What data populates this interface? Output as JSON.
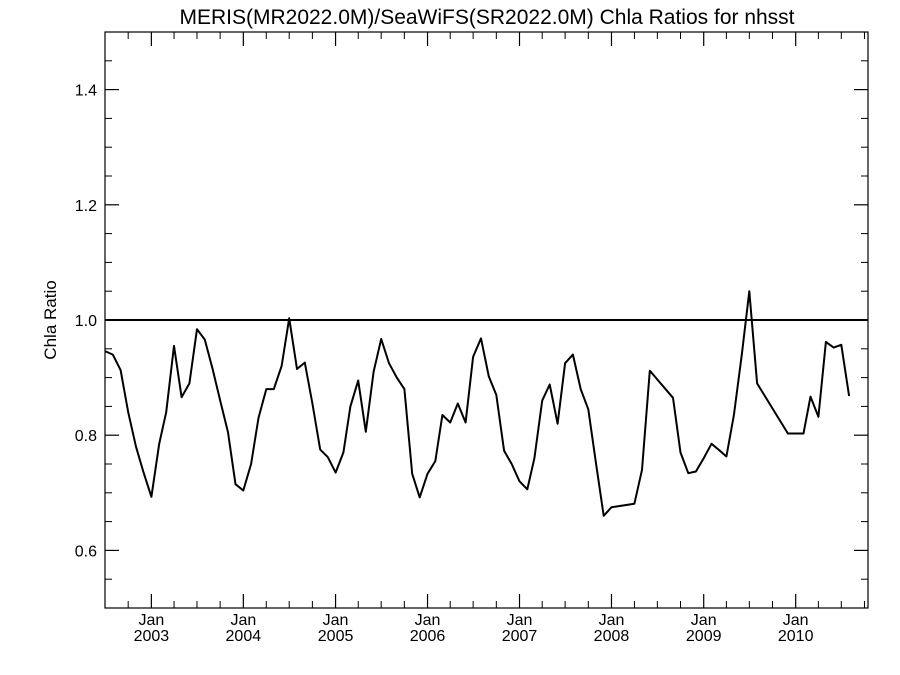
{
  "chart_data": {
    "type": "line",
    "title": "MERIS(MR2022.0M)/SeaWiFS(SR2022.0M)  Chla Ratios for nhsst",
    "xlabel": "",
    "ylabel": "Chla Ratio",
    "xlim": [
      "2002-07-01",
      "2010-10-15"
    ],
    "ylim": [
      0.5,
      1.5
    ],
    "y_ticks": [
      0.6,
      0.8,
      1.0,
      1.2,
      1.4
    ],
    "y_tick_labels": [
      "0.6",
      "0.8",
      "1.0",
      "1.2",
      "1.4"
    ],
    "x_ticks": [
      {
        "date": "2003-01-01",
        "month": "Jan",
        "year": "2003"
      },
      {
        "date": "2004-01-01",
        "month": "Jan",
        "year": "2004"
      },
      {
        "date": "2005-01-01",
        "month": "Jan",
        "year": "2005"
      },
      {
        "date": "2006-01-01",
        "month": "Jan",
        "year": "2006"
      },
      {
        "date": "2007-01-01",
        "month": "Jan",
        "year": "2007"
      },
      {
        "date": "2008-01-01",
        "month": "Jan",
        "year": "2008"
      },
      {
        "date": "2009-01-01",
        "month": "Jan",
        "year": "2009"
      },
      {
        "date": "2010-01-01",
        "month": "Jan",
        "year": "2010"
      }
    ],
    "reference_line": 1.0,
    "grid": false,
    "series": [
      {
        "x": [
          "2002-07-01",
          "2002-08-01",
          "2002-09-01",
          "2002-10-01",
          "2002-11-01",
          "2002-12-01",
          "2003-01-01",
          "2003-02-01",
          "2003-03-01",
          "2003-04-01",
          "2003-05-01",
          "2003-06-01",
          "2003-07-01",
          "2003-08-01",
          "2003-09-01",
          "2003-10-01",
          "2003-11-01",
          "2003-12-01",
          "2004-01-01",
          "2004-02-01",
          "2004-03-01",
          "2004-04-01",
          "2004-05-01",
          "2004-06-01",
          "2004-07-01",
          "2004-08-01",
          "2004-09-01",
          "2004-10-01",
          "2004-11-01",
          "2004-12-01",
          "2005-01-01",
          "2005-02-01",
          "2005-03-01",
          "2005-04-01",
          "2005-05-01",
          "2005-06-01",
          "2005-07-01",
          "2005-08-01",
          "2005-09-01",
          "2005-10-01",
          "2005-11-01",
          "2005-12-01",
          "2006-01-01",
          "2006-02-01",
          "2006-03-01",
          "2006-04-01",
          "2006-05-01",
          "2006-06-01",
          "2006-07-01",
          "2006-08-01",
          "2006-09-01",
          "2006-10-01",
          "2006-11-01",
          "2006-12-01",
          "2007-01-01",
          "2007-02-01",
          "2007-03-01",
          "2007-04-01",
          "2007-05-01",
          "2007-06-01",
          "2007-07-01",
          "2007-08-01",
          "2007-09-01",
          "2007-10-01",
          "2007-11-01",
          "2007-12-01",
          "2008-01-01",
          "2008-04-01",
          "2008-05-01",
          "2008-06-01",
          "2008-09-01",
          "2008-10-01",
          "2008-11-01",
          "2008-12-01",
          "2009-01-01",
          "2009-02-01",
          "2009-03-01",
          "2009-04-01",
          "2009-05-01",
          "2009-06-01",
          "2009-07-01",
          "2009-08-01",
          "2009-12-01",
          "2010-01-01",
          "2010-02-01",
          "2010-03-01",
          "2010-04-01",
          "2010-05-01",
          "2010-06-01",
          "2010-07-01",
          "2010-08-01"
        ],
        "values": [
          0.946,
          0.94,
          0.913,
          0.84,
          0.78,
          0.735,
          0.693,
          0.785,
          0.84,
          0.955,
          0.866,
          0.89,
          0.984,
          0.966,
          0.915,
          0.86,
          0.805,
          0.715,
          0.704,
          0.75,
          0.83,
          0.88,
          0.88,
          0.92,
          1.003,
          0.915,
          0.926,
          0.855,
          0.775,
          0.762,
          0.735,
          0.77,
          0.85,
          0.895,
          0.806,
          0.91,
          0.967,
          0.925,
          0.9,
          0.88,
          0.733,
          0.692,
          0.733,
          0.755,
          0.835,
          0.822,
          0.855,
          0.822,
          0.936,
          0.968,
          0.902,
          0.87,
          0.773,
          0.75,
          0.72,
          0.706,
          0.76,
          0.86,
          0.888,
          0.82,
          0.925,
          0.94,
          0.88,
          0.845,
          0.75,
          0.66,
          0.675,
          0.681,
          0.74,
          0.912,
          0.865,
          0.77,
          0.734,
          0.737,
          0.76,
          0.785,
          0.775,
          0.763,
          0.835,
          0.94,
          1.05,
          0.89,
          0.803,
          0.803,
          0.803,
          0.867,
          0.832,
          0.962,
          0.952,
          0.957,
          0.868
        ]
      }
    ]
  }
}
